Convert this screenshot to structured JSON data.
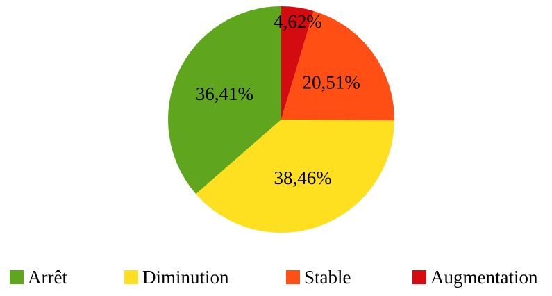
{
  "chart_data": {
    "type": "pie",
    "categories": [
      "Arrêt",
      "Diminution",
      "Stable",
      "Augmentation"
    ],
    "values": [
      36.41,
      38.46,
      20.51,
      4.62
    ],
    "labels": [
      "36,41%",
      "38,46%",
      "20,51%",
      "4,62%"
    ],
    "colors": [
      "#5fa51e",
      "#ffe020",
      "#ff4f14",
      "#d40b11"
    ],
    "legend": "bottom",
    "title": ""
  }
}
